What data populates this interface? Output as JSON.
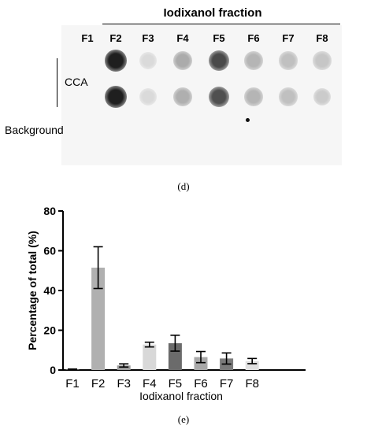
{
  "panel_d": {
    "title": "Iodixanol fraction",
    "fractions": [
      "F1",
      "F2",
      "F3",
      "F4",
      "F5",
      "F6",
      "F7",
      "F8"
    ],
    "row_labels": [
      "CCA",
      "Background"
    ],
    "label": "(d)",
    "dot_intensity": {
      "row1": [
        0,
        0.95,
        0.08,
        0.3,
        0.75,
        0.25,
        0.2,
        0.17
      ],
      "row2": [
        0,
        0.95,
        0.08,
        0.28,
        0.72,
        0.25,
        0.2,
        0.15
      ]
    }
  },
  "panel_e": {
    "label": "(e)"
  },
  "chart_data": {
    "type": "bar",
    "categories": [
      "F1",
      "F2",
      "F3",
      "F4",
      "F5",
      "F6",
      "F7",
      "F8"
    ],
    "values": [
      0.2,
      51.5,
      2.3,
      12.8,
      13.5,
      6.5,
      5.8,
      4.5
    ],
    "errors": [
      0.3,
      10.5,
      0.8,
      1.2,
      4.0,
      2.8,
      2.8,
      1.3
    ],
    "bar_colors": [
      "#9a9a9a",
      "#b0b0b0",
      "#9a9a9a",
      "#d8d8d8",
      "#6b6b6b",
      "#a8a8a8",
      "#7a7a7a",
      "#e0e0e0"
    ],
    "xlabel": "Iodixanol fraction",
    "ylabel": "Percentage of total (%)",
    "ylim": [
      0,
      80
    ],
    "yticks": [
      0,
      20,
      40,
      60,
      80
    ],
    "grid": false
  }
}
